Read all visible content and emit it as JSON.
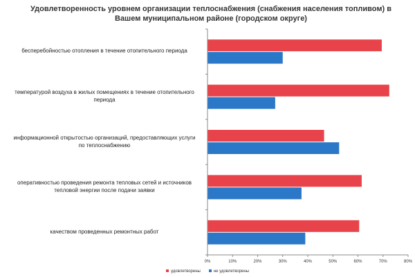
{
  "chart_data": {
    "type": "bar",
    "orientation": "horizontal",
    "title": "Удовлетворенность уровнем организации теплоснабжения (снабжения населения топливом) в Вашем муниципальном районе (городском округе)",
    "categories": [
      [
        "бесперебойностью отопления в течение отопительного периода"
      ],
      [
        "температурой воздуха в жилых помещениях в течение отопительного",
        "периода"
      ],
      [
        "информационной открытостью организаций, предоставляющих услуги",
        "по теплоснабжению"
      ],
      [
        "оперативностью проведения ремонта тепловых сетей и источников",
        "тепловой энергии после подачи заявки"
      ],
      [
        "качеством проведенных ремонтных работ"
      ]
    ],
    "series": [
      {
        "name": "удовлетворены",
        "color": "#e8434a",
        "values": [
          69.5,
          72.5,
          46.5,
          61.5,
          60.5
        ]
      },
      {
        "name": "не удовлетворены",
        "color": "#2b78c8",
        "values": [
          30,
          27,
          52.5,
          37.5,
          39
        ]
      }
    ],
    "xlim": [
      0,
      80
    ],
    "xticks": [
      "0%",
      "10%",
      "20%",
      "30%",
      "40%",
      "50%",
      "60%",
      "70%",
      "80%"
    ],
    "grid": false,
    "legend": "bottom"
  }
}
